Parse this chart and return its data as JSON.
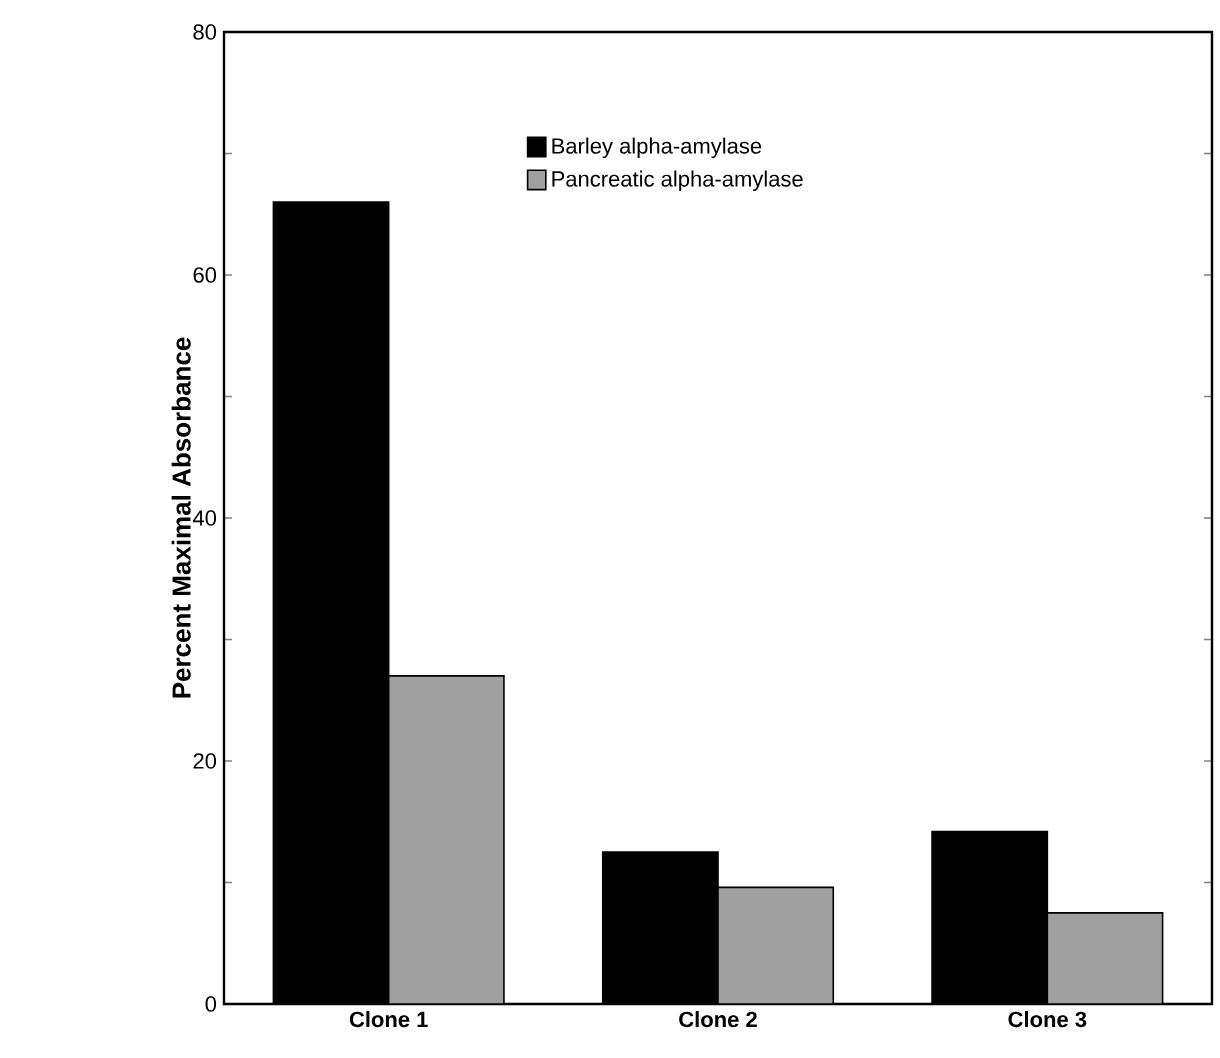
{
  "chart_data": {
    "type": "bar",
    "ylabel": "Percent Maximal Absorbance",
    "categories": [
      "Clone 1",
      "Clone 2",
      "Clone 3"
    ],
    "series": [
      {
        "name": "Barley alpha-amylase",
        "color": "#000000",
        "values": [
          66,
          12.5,
          14.2
        ]
      },
      {
        "name": "Pancreatic alpha-amylase",
        "color": "#a0a0a0",
        "values": [
          27,
          9.6,
          7.5
        ]
      }
    ],
    "ylim": [
      0,
      80
    ],
    "yticks": [
      0,
      {
        "value": 10,
        "label": null
      },
      20,
      {
        "value": 30,
        "label": null
      },
      40,
      {
        "value": 50,
        "label": null
      },
      60,
      {
        "value": 70,
        "label": null
      },
      80
    ],
    "legend": "top"
  }
}
